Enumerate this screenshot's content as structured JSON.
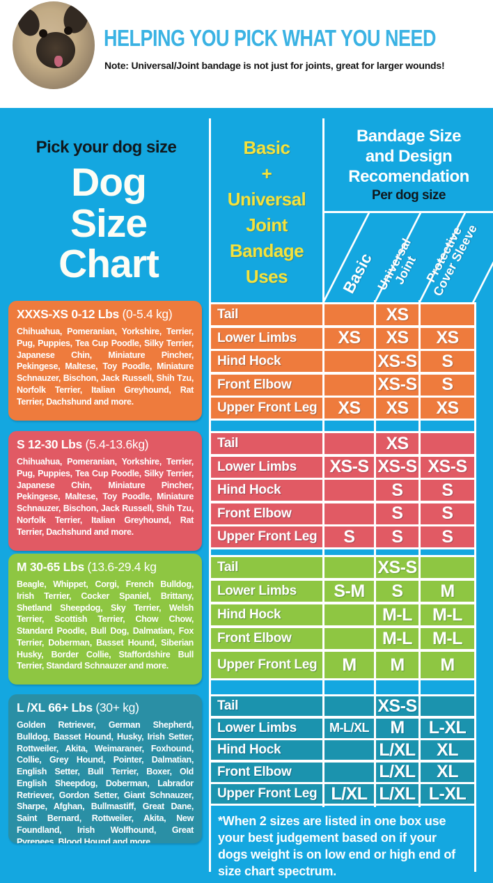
{
  "header": {
    "title": "HELPING YOU PICK WHAT YOU NEED",
    "note": "Note: Universal/Joint bandage is not just for joints, great for larger wounds!"
  },
  "left_panel": {
    "kicker": "Pick your dog size",
    "title_line1": "Dog",
    "title_line2": "Size",
    "title_line3": "Chart"
  },
  "uses_column": {
    "line1": "Basic",
    "line2": "+",
    "line3": "Universal",
    "line4": "Joint",
    "line5": "Bandage",
    "line6": "Uses"
  },
  "recommendation": {
    "line1": "Bandage Size",
    "line2": "and Design",
    "line3": "Recomendation",
    "subtitle": "Per dog size"
  },
  "bandage_columns": {
    "basic": "Basic",
    "universal_line1": "Universal",
    "universal_line2": "Joint",
    "protective_line1": "Protective",
    "protective_line2": "Cover Sleeve"
  },
  "groups": [
    {
      "size": "XXXS-XS",
      "weight_lbs": "0-12 Lbs",
      "weight_kg": "(0-5.4 kg)",
      "color": "#ee7b3d",
      "dogs": "Chihuahua, Pomeranian, Yorkshire, Terrier, Pug, Puppies, Tea Cup Poodle, Silky Terrier, Japanese Chin, Miniature Pincher, Pekingese, Maltese, Toy Poodle, Miniature Schnauzer, Bischon, Jack Russell, Shih Tzu, Norfolk Terrier, Italian Greyhound, Rat Terrier, Dachshund and more.",
      "rows": [
        {
          "label": "Tail",
          "values": [
            "",
            "XS",
            ""
          ]
        },
        {
          "label": "Lower Limbs",
          "values": [
            "XS",
            "XS",
            "XS"
          ]
        },
        {
          "label": "Hind Hock",
          "values": [
            "",
            "XS-S",
            "S"
          ]
        },
        {
          "label": "Front Elbow",
          "values": [
            "",
            "XS-S",
            "S"
          ]
        },
        {
          "label": "Upper Front Leg",
          "values": [
            "XS",
            "XS",
            "XS"
          ]
        }
      ]
    },
    {
      "size": "S",
      "weight_lbs": "12-30 Lbs",
      "weight_kg": "(5.4-13.6kg)",
      "color": "#e15a64",
      "dogs": "Chihuahua, Pomeranian, Yorkshire, Terrier, Pug, Puppies, Tea Cup Poodle, Silky Terrier, Japanese Chin, Miniature Pincher, Pekingese, Maltese, Toy Poodle, Miniature Schnauzer, Bischon, Jack Russell, Shih Tzu, Norfolk Terrier, Italian Greyhound, Rat Terrier, Dachshund and more.",
      "rows": [
        {
          "label": "Tail",
          "values": [
            "",
            "XS",
            ""
          ]
        },
        {
          "label": "Lower Limbs",
          "values": [
            "XS-S",
            "XS-S",
            "XS-S"
          ]
        },
        {
          "label": "Hind Hock",
          "values": [
            "",
            "S",
            "S"
          ]
        },
        {
          "label": "Front Elbow",
          "values": [
            "",
            "S",
            "S"
          ]
        },
        {
          "label": "Upper Front Leg",
          "values": [
            "S",
            "S",
            "S"
          ]
        }
      ]
    },
    {
      "size": "M",
      "weight_lbs": "30-65 Lbs",
      "weight_kg": "(13.6-29.4 kg",
      "color": "#8ec642",
      "dogs": "Beagle, Whippet, Corgi, French Bulldog, Irish Terrier, Cocker Spaniel, Brittany, Shetland Sheepdog, Sky Terrier, Welsh Terrier, Scottish Terrier, Chow Chow, Standard Poodle, Bull Dog, Dalmatian, Fox Terrier, Doberman, Basset Hound, Siberian Husky, Border Collie, Staffordshire Bull Terrier, Standard Schnauzer and more.",
      "rows": [
        {
          "label": "Tail",
          "values": [
            "",
            "XS-S",
            ""
          ]
        },
        {
          "label": "Lower Limbs",
          "values": [
            "S-M",
            "S",
            "M"
          ]
        },
        {
          "label": "Hind Hock",
          "values": [
            "",
            "M-L",
            "M-L"
          ]
        },
        {
          "label": "Front Elbow",
          "values": [
            "",
            "M-L",
            "M-L"
          ]
        },
        {
          "label": "Upper Front Leg",
          "values": [
            "M",
            "M",
            "M"
          ]
        }
      ]
    },
    {
      "size": "L /XL",
      "weight_lbs": "66+ Lbs",
      "weight_kg": "(30+ kg)",
      "color": "#2a8fa5",
      "dogs": "Golden Retriever, German Shepherd, Bulldog, Basset Hound, Husky, Irish Setter, Rottweiler, Akita, Weimaraner, Foxhound, Collie, Grey Hound, Pointer, Dalmatian, English Setter, Bull Terrier, Boxer, Old English Sheepdog, Doberman, Labrador Retriever, Gordon Setter, Giant Schnauzer, Sharpe, Afghan, Bullmastiff, Great Dane, Saint Bernard, Rottweiler, Akita, New Foundland, Irish Wolfhound, Great Pyrenees, Blood Hound and more.",
      "rows": [
        {
          "label": "Tail",
          "values": [
            "",
            "XS-S",
            ""
          ]
        },
        {
          "label": "Lower Limbs",
          "values": [
            "M-L/XL",
            "M",
            "L-XL"
          ]
        },
        {
          "label": "Hind Hock",
          "values": [
            "",
            "L/XL",
            "XL"
          ]
        },
        {
          "label": "Front Elbow",
          "values": [
            "",
            "L/XL",
            "XL"
          ]
        },
        {
          "label": "Upper Front Leg",
          "values": [
            "L/XL",
            "L/XL",
            "L-XL"
          ]
        }
      ]
    }
  ],
  "footnote": "*When 2 sizes are listed in one box use your best judgement based on if your dogs weight is on low end or high end of size chart spectrum.",
  "colors": {
    "background_cyan": "#14a7e0",
    "title_cyan": "#3ab2e3",
    "accent_yellow": "#f4e23c",
    "group_orange": "#ee7b3d",
    "group_red": "#e15a64",
    "group_green": "#8ec642",
    "group_teal": "#2a8fa5",
    "grid_white": "#ffffff"
  },
  "chart_data": {
    "type": "table",
    "title": "Dog Size Chart",
    "columns": [
      "Basic",
      "Universal Joint",
      "Protective Cover Sleeve"
    ],
    "row_labels": [
      "Tail",
      "Lower Limbs",
      "Hind Hock",
      "Front Elbow",
      "Upper Front Leg"
    ],
    "groups": [
      {
        "name": "XXXS-XS 0-12 Lbs (0-5.4 kg)",
        "values": [
          [
            "",
            "XS",
            ""
          ],
          [
            "XS",
            "XS",
            "XS"
          ],
          [
            "",
            "XS-S",
            "S"
          ],
          [
            "",
            "XS-S",
            "S"
          ],
          [
            "XS",
            "XS",
            "XS"
          ]
        ]
      },
      {
        "name": "S 12-30 Lbs (5.4-13.6kg)",
        "values": [
          [
            "",
            "XS",
            ""
          ],
          [
            "XS-S",
            "XS-S",
            "XS-S"
          ],
          [
            "",
            "S",
            "S"
          ],
          [
            "",
            "S",
            "S"
          ],
          [
            "S",
            "S",
            "S"
          ]
        ]
      },
      {
        "name": "M 30-65 Lbs (13.6-29.4 kg)",
        "values": [
          [
            "",
            "XS-S",
            ""
          ],
          [
            "S-M",
            "S",
            "M"
          ],
          [
            "",
            "M-L",
            "M-L"
          ],
          [
            "",
            "M-L",
            "M-L"
          ],
          [
            "M",
            "M",
            "M"
          ]
        ]
      },
      {
        "name": "L /XL 66+ Lbs (30+ kg)",
        "values": [
          [
            "",
            "XS-S",
            ""
          ],
          [
            "M-L/XL",
            "M",
            "L-XL"
          ],
          [
            "",
            "L/XL",
            "XL"
          ],
          [
            "",
            "L/XL",
            "XL"
          ],
          [
            "L/XL",
            "L/XL",
            "L-XL"
          ]
        ]
      }
    ]
  }
}
